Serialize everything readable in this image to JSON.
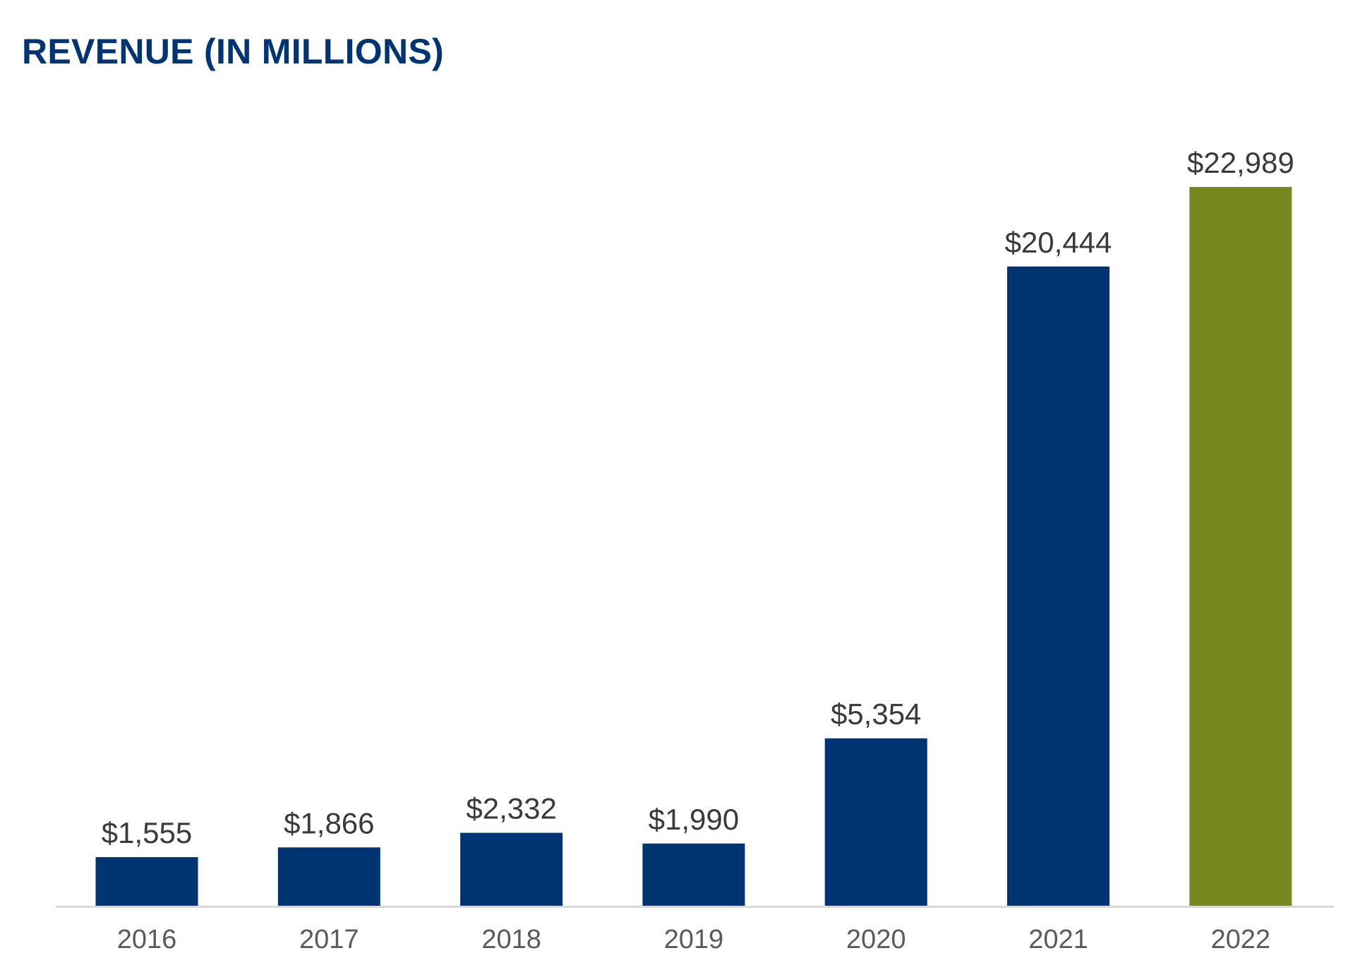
{
  "chart_data": {
    "type": "bar",
    "title": "REVENUE (IN MILLIONS)",
    "categories": [
      "2016",
      "2017",
      "2018",
      "2019",
      "2020",
      "2021",
      "2022"
    ],
    "values": [
      1555,
      1866,
      2332,
      1990,
      5354,
      20444,
      22989
    ],
    "value_labels": [
      "$1,555",
      "$1,866",
      "$2,332",
      "$1,990",
      "$5,354",
      "$20,444",
      "$22,989"
    ],
    "xlabel": "",
    "ylabel": "",
    "ylim": [
      0,
      23000
    ],
    "grid": false,
    "legend": "none",
    "colors": {
      "bar": "#003473",
      "highlight_bar": "#778820",
      "title": "#003473",
      "axis": "#d9d9d9"
    },
    "highlight_index": 6
  }
}
